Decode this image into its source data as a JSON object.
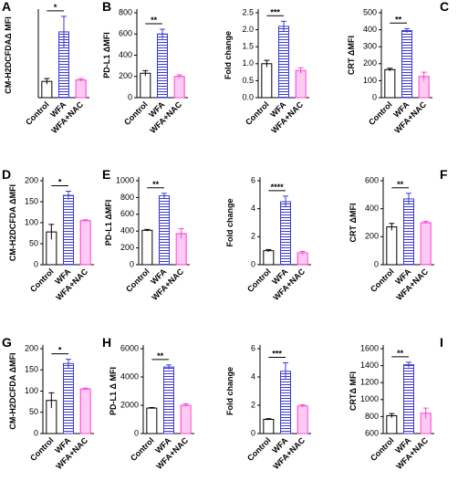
{
  "chart_data": [
    {
      "type": "bar",
      "panel": "A",
      "ylabel": "CM-H2DCFDAΔ MFI",
      "categories": [
        "Control",
        "WFA",
        "WFA+NAC"
      ],
      "values": [
        230,
        930,
        250
      ],
      "errors": [
        40,
        220,
        20
      ],
      "ylim": [
        0,
        1200
      ],
      "annotation": "*",
      "colors": [
        "#000000",
        "#3a3ad0",
        "#ff40d0"
      ],
      "fills": [
        "solid",
        "stripes",
        "dots"
      ]
    },
    {
      "type": "bar",
      "panel": "B",
      "ylabel": "PD-L1 ΔMFI",
      "categories": [
        "Control",
        "WFA",
        "WFA+NAC"
      ],
      "values": [
        230,
        600,
        200
      ],
      "errors": [
        25,
        45,
        15
      ],
      "ylim": [
        0,
        800
      ],
      "yticks": [
        0,
        200,
        400,
        600,
        800
      ],
      "annotation": "**",
      "colors": [
        "#000000",
        "#3a3ad0",
        "#ff40d0"
      ],
      "fills": [
        "solid",
        "stripes",
        "dots"
      ]
    },
    {
      "type": "bar",
      "ylabel": "Fold change",
      "categories": [
        "Control",
        "WFA",
        "WFA+NAC"
      ],
      "values": [
        1.0,
        2.1,
        0.8
      ],
      "errors": [
        0.1,
        0.15,
        0.08
      ],
      "ylim": [
        0,
        2.5
      ],
      "yticks": [
        {
          "value": 0,
          "label": "0.0"
        },
        0.5,
        {
          "value": 1,
          "label": "1.0"
        },
        1.5,
        {
          "value": 2,
          "label": "2.0"
        },
        2.5
      ],
      "annotation": "***",
      "colors": [
        "#000000",
        "#3a3ad0",
        "#ff40d0"
      ],
      "fills": [
        "solid",
        "stripes",
        "dots"
      ]
    },
    {
      "type": "bar",
      "panel": "C",
      "ylabel": "CRT ΔMFI",
      "categories": [
        "Control",
        "WFA",
        "WFA+NAC"
      ],
      "values": [
        165,
        395,
        125
      ],
      "errors": [
        8,
        12,
        25
      ],
      "ylim": [
        0,
        500
      ],
      "yticks": [
        0,
        100,
        200,
        300,
        400,
        500
      ],
      "annotation": "**",
      "colors": [
        "#000000",
        "#3a3ad0",
        "#ff40d0"
      ],
      "fills": [
        "solid",
        "stripes",
        "dots"
      ]
    },
    {
      "type": "bar",
      "panel": "D",
      "ylabel": "CM-H2DCFDA ΔMFI",
      "categories": [
        "Control",
        "WFA",
        "WFA+NAC"
      ],
      "values": [
        78,
        165,
        105
      ],
      "errors": [
        18,
        10,
        2
      ],
      "ylim": [
        0,
        200
      ],
      "yticks": [
        0,
        50,
        100,
        150,
        200
      ],
      "annotation": "*",
      "colors": [
        "#000000",
        "#3a3ad0",
        "#ff40d0"
      ],
      "fills": [
        "solid",
        "stripes",
        "dots"
      ]
    },
    {
      "type": "bar",
      "panel": "E",
      "ylabel": "PD-L1 ΔMFI",
      "categories": [
        "Control",
        "WFA",
        "WFA+NAC"
      ],
      "values": [
        410,
        820,
        370
      ],
      "errors": [
        10,
        30,
        60
      ],
      "ylim": [
        0,
        1000
      ],
      "yticks": [
        0,
        200,
        400,
        600,
        800,
        1000
      ],
      "annotation": "**",
      "colors": [
        "#000000",
        "#3a3ad0",
        "#ff40d0"
      ],
      "fills": [
        "solid",
        "stripes",
        "dots"
      ]
    },
    {
      "type": "bar",
      "ylabel": "Fold change",
      "categories": [
        "Control",
        "WFA",
        "WFA+NAC"
      ],
      "values": [
        1.0,
        4.5,
        0.85
      ],
      "errors": [
        0.08,
        0.4,
        0.1
      ],
      "ylim": [
        0,
        6
      ],
      "yticks": [
        0,
        2,
        4,
        6
      ],
      "annotation": "****",
      "colors": [
        "#000000",
        "#3a3ad0",
        "#ff40d0"
      ],
      "fills": [
        "solid",
        "stripes",
        "dots"
      ]
    },
    {
      "type": "bar",
      "panel": "F",
      "ylabel": "CRT ΔMFI",
      "categories": [
        "Control",
        "WFA",
        "WFA+NAC"
      ],
      "values": [
        270,
        470,
        300
      ],
      "errors": [
        25,
        40,
        10
      ],
      "ylim": [
        0,
        600
      ],
      "yticks": [
        0,
        200,
        400,
        600
      ],
      "annotation": "**",
      "colors": [
        "#000000",
        "#3a3ad0",
        "#ff40d0"
      ],
      "fills": [
        "solid",
        "stripes",
        "dots"
      ]
    },
    {
      "type": "bar",
      "panel": "G",
      "ylabel": "CM-H2DCFDA ΔMFI",
      "categories": [
        "Control",
        "WFA",
        "WFA+NAC"
      ],
      "values": [
        78,
        165,
        105
      ],
      "errors": [
        18,
        10,
        2
      ],
      "ylim": [
        0,
        200
      ],
      "yticks": [
        0,
        50,
        100,
        150,
        200
      ],
      "annotation": "*",
      "colors": [
        "#000000",
        "#3a3ad0",
        "#ff40d0"
      ],
      "fills": [
        "solid",
        "stripes",
        "dots"
      ]
    },
    {
      "type": "bar",
      "panel": "H",
      "ylabel": "PD-L1 Δ MFI",
      "categories": [
        "Control",
        "WFA",
        "WFA+NAC"
      ],
      "values": [
        1800,
        4700,
        2000
      ],
      "errors": [
        40,
        150,
        100
      ],
      "ylim": [
        0,
        6000
      ],
      "yticks": [
        0,
        2000,
        4000,
        6000
      ],
      "annotation": "**",
      "colors": [
        "#000000",
        "#3a3ad0",
        "#ff40d0"
      ],
      "fills": [
        "solid",
        "stripes",
        "dots"
      ]
    },
    {
      "type": "bar",
      "ylabel": "Fold change",
      "categories": [
        "Control",
        "WFA",
        "WFA+NAC"
      ],
      "values": [
        1.0,
        4.4,
        1.95
      ],
      "errors": [
        0.05,
        0.6,
        0.08
      ],
      "ylim": [
        0,
        6
      ],
      "yticks": [
        0,
        2,
        4,
        6
      ],
      "annotation": "***",
      "colors": [
        "#000000",
        "#3a3ad0",
        "#ff40d0"
      ],
      "fills": [
        "solid",
        "stripes",
        "dots"
      ]
    },
    {
      "type": "bar",
      "panel": "I",
      "ylabel": "CRTΔ MFI",
      "categories": [
        "Control",
        "WFA",
        "WFA+NAC"
      ],
      "values": [
        810,
        1410,
        840
      ],
      "errors": [
        25,
        30,
        60
      ],
      "ylim": [
        600,
        1600
      ],
      "yticks": [
        600,
        800,
        1000,
        1200,
        1400,
        1600
      ],
      "annotation": "**",
      "colors": [
        "#000000",
        "#3a3ad0",
        "#ff40d0"
      ],
      "fills": [
        "solid",
        "stripes",
        "dots"
      ]
    }
  ]
}
